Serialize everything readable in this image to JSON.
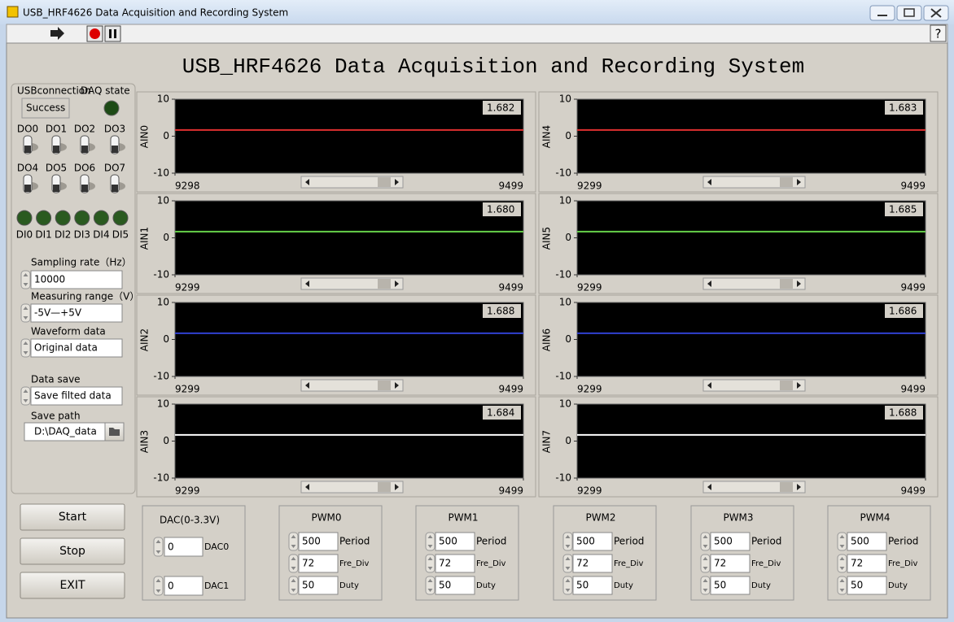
{
  "window": {
    "title": "USB_HRF4626 Data Acquisition and Recording System",
    "help": "?"
  },
  "header": {
    "title": "USB_HRF4626 Data Acquisition and Recording System"
  },
  "status": {
    "connection_label": "USBconnection",
    "connection_value": "Success",
    "daq_label": "DAQ state"
  },
  "digital_outputs": [
    "DO0",
    "DO1",
    "DO2",
    "DO3",
    "DO4",
    "DO5",
    "DO6",
    "DO7"
  ],
  "digital_inputs": [
    "DI0",
    "DI1",
    "DI2",
    "DI3",
    "DI4",
    "DI5"
  ],
  "settings": [
    {
      "label": "Sampling rate（Hz）",
      "value": "10000"
    },
    {
      "label": "Measuring range（V）",
      "value": "-5V—+5V"
    },
    {
      "label": "Waveform data",
      "value": "Original data"
    },
    {
      "label": "Data save",
      "value": "Save filted data"
    }
  ],
  "save_path": {
    "label": "Save path",
    "value": "D:\\DAQ_data"
  },
  "buttons": [
    "Start",
    "Stop",
    "EXIT"
  ],
  "dac": {
    "title": "DAC(0-3.3V)",
    "channels": [
      {
        "name": "DAC0",
        "value": "0"
      },
      {
        "name": "DAC1",
        "value": "0"
      }
    ]
  },
  "pwm": [
    {
      "title": "PWM0",
      "fields": [
        {
          "label": "Period",
          "value": "500"
        },
        {
          "label": "Fre_Div",
          "value": "72"
        },
        {
          "label": "Duty",
          "value": "50"
        }
      ]
    },
    {
      "title": "PWM1",
      "fields": [
        {
          "label": "Period",
          "value": "500"
        },
        {
          "label": "Fre_Div",
          "value": "72"
        },
        {
          "label": "Duty",
          "value": "50"
        }
      ]
    },
    {
      "title": "PWM2",
      "fields": [
        {
          "label": "Period",
          "value": "500"
        },
        {
          "label": "Fre_Div",
          "value": "72"
        },
        {
          "label": "Duty",
          "value": "50"
        }
      ]
    },
    {
      "title": "PWM3",
      "fields": [
        {
          "label": "Period",
          "value": "500"
        },
        {
          "label": "Fre_Div",
          "value": "72"
        },
        {
          "label": "Duty",
          "value": "50"
        }
      ]
    },
    {
      "title": "PWM4",
      "fields": [
        {
          "label": "Period",
          "value": "500"
        },
        {
          "label": "Fre_Div",
          "value": "72"
        },
        {
          "label": "Duty",
          "value": "50"
        }
      ]
    }
  ],
  "graphs": [
    {
      "name": "AIN0",
      "color": "#e03030",
      "value": 1.682,
      "value_label": "1.682",
      "ylim": [
        -10,
        10
      ],
      "yticks": [
        10,
        0,
        -10
      ],
      "xlim": [
        9298,
        9499
      ],
      "xticks": [
        9298,
        9499
      ]
    },
    {
      "name": "AIN1",
      "color": "#66d04a",
      "value": 1.68,
      "value_label": "1.680",
      "ylim": [
        -10,
        10
      ],
      "yticks": [
        10,
        0,
        -10
      ],
      "xlim": [
        9299,
        9499
      ],
      "xticks": [
        9299,
        9499
      ]
    },
    {
      "name": "AIN2",
      "color": "#3040d0",
      "value": 1.688,
      "value_label": "1.688",
      "ylim": [
        -10,
        10
      ],
      "yticks": [
        10,
        0,
        -10
      ],
      "xlim": [
        9299,
        9499
      ],
      "xticks": [
        9299,
        9499
      ]
    },
    {
      "name": "AIN3",
      "color": "#ffffff",
      "value": 1.684,
      "value_label": "1.684",
      "ylim": [
        -10,
        10
      ],
      "yticks": [
        10,
        0,
        -10
      ],
      "xlim": [
        9299,
        9499
      ],
      "xticks": [
        9299,
        9499
      ]
    },
    {
      "name": "AIN4",
      "color": "#e03030",
      "value": 1.683,
      "value_label": "1.683",
      "ylim": [
        -10,
        10
      ],
      "yticks": [
        10,
        0,
        -10
      ],
      "xlim": [
        9299,
        9499
      ],
      "xticks": [
        9299,
        9499
      ]
    },
    {
      "name": "AIN5",
      "color": "#66d04a",
      "value": 1.685,
      "value_label": "1.685",
      "ylim": [
        -10,
        10
      ],
      "yticks": [
        10,
        0,
        -10
      ],
      "xlim": [
        9299,
        9499
      ],
      "xticks": [
        9299,
        9499
      ]
    },
    {
      "name": "AIN6",
      "color": "#3040d0",
      "value": 1.686,
      "value_label": "1.686",
      "ylim": [
        -10,
        10
      ],
      "yticks": [
        10,
        0,
        -10
      ],
      "xlim": [
        9299,
        9499
      ],
      "xticks": [
        9299,
        9499
      ]
    },
    {
      "name": "AIN7",
      "color": "#ffffff",
      "value": 1.688,
      "value_label": "1.688",
      "ylim": [
        -10,
        10
      ],
      "yticks": [
        10,
        0,
        -10
      ],
      "xlim": [
        9299,
        9499
      ],
      "xticks": [
        9299,
        9499
      ]
    }
  ]
}
